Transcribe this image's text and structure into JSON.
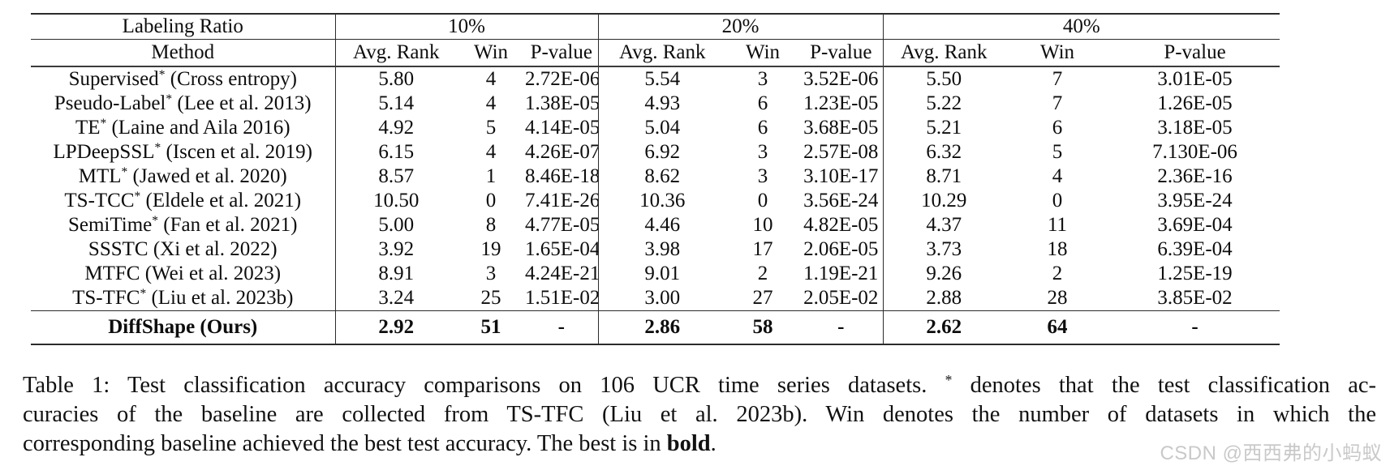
{
  "table": {
    "header": {
      "labeling_ratio_label": "Labeling Ratio",
      "method_label": "Method",
      "ratio_groups": [
        "10%",
        "20%",
        "40%"
      ],
      "subcolumns": [
        "Avg. Rank",
        "Win",
        "P-value"
      ]
    },
    "rows": [
      {
        "name": "Supervised",
        "star": "*",
        "cite": "(Cross entropy)",
        "bold": false,
        "cells": [
          "5.80",
          "4",
          "2.72E-06",
          "5.54",
          "3",
          "3.52E-06",
          "5.50",
          "7",
          "3.01E-05"
        ]
      },
      {
        "name": "Pseudo-Label",
        "star": "*",
        "cite": "(Lee et al. 2013)",
        "bold": false,
        "cells": [
          "5.14",
          "4",
          "1.38E-05",
          "4.93",
          "6",
          "1.23E-05",
          "5.22",
          "7",
          "1.26E-05"
        ]
      },
      {
        "name": "TE",
        "star": "*",
        "cite": "(Laine and Aila 2016)",
        "bold": false,
        "cells": [
          "4.92",
          "5",
          "4.14E-05",
          "5.04",
          "6",
          "3.68E-05",
          "5.21",
          "6",
          "3.18E-05"
        ]
      },
      {
        "name": "LPDeepSSL",
        "star": "*",
        "cite": "(Iscen et al. 2019)",
        "bold": false,
        "cells": [
          "6.15",
          "4",
          "4.26E-07",
          "6.92",
          "3",
          "2.57E-08",
          "6.32",
          "5",
          "7.130E-06"
        ]
      },
      {
        "name": "MTL",
        "star": "*",
        "cite": "(Jawed et al. 2020)",
        "bold": false,
        "cells": [
          "8.57",
          "1",
          "8.46E-18",
          "8.62",
          "3",
          "3.10E-17",
          "8.71",
          "4",
          "2.36E-16"
        ]
      },
      {
        "name": "TS-TCC",
        "star": "*",
        "cite": "(Eldele et al. 2021)",
        "bold": false,
        "cells": [
          "10.50",
          "0",
          "7.41E-26",
          "10.36",
          "0",
          "3.56E-24",
          "10.29",
          "0",
          "3.95E-24"
        ]
      },
      {
        "name": "SemiTime",
        "star": "*",
        "cite": "(Fan et al. 2021)",
        "bold": false,
        "cells": [
          "5.00",
          "8",
          "4.77E-05",
          "4.46",
          "10",
          "4.82E-05",
          "4.37",
          "11",
          "3.69E-04"
        ]
      },
      {
        "name": "SSSTC",
        "star": "",
        "cite": "(Xi et al. 2022)",
        "bold": false,
        "cells": [
          "3.92",
          "19",
          "1.65E-04",
          "3.98",
          "17",
          "2.06E-05",
          "3.73",
          "18",
          "6.39E-04"
        ]
      },
      {
        "name": "MTFC",
        "star": "",
        "cite": "(Wei et al. 2023)",
        "bold": false,
        "cells": [
          "8.91",
          "3",
          "4.24E-21",
          "9.01",
          "2",
          "1.19E-21",
          "9.26",
          "2",
          "1.25E-19"
        ]
      },
      {
        "name": "TS-TFC",
        "star": "*",
        "cite": "(Liu et al. 2023b)",
        "bold": false,
        "cells": [
          "3.24",
          "25",
          "1.51E-02",
          "3.00",
          "27",
          "2.05E-02",
          "2.88",
          "28",
          "3.85E-02"
        ]
      },
      {
        "name": "DiffShape (Ours)",
        "star": "",
        "cite": "",
        "bold": true,
        "cells": [
          "2.92",
          "51",
          "-",
          "2.86",
          "58",
          "-",
          "2.62",
          "64",
          "-"
        ]
      }
    ]
  },
  "caption": {
    "lines": [
      {
        "segments": [
          {
            "text": "Table 1: Test classification accuracy comparisons on 106 UCR time series datasets. ",
            "style": "normal"
          },
          {
            "text": "*",
            "style": "sup"
          },
          {
            "text": " denotes that the test classification ac-",
            "style": "normal"
          }
        ]
      },
      {
        "segments": [
          {
            "text": "curacies of the baseline are collected from TS-TFC (Liu et al. 2023b). Win denotes the number of datasets in which the",
            "style": "normal"
          }
        ]
      },
      {
        "segments": [
          {
            "text": "corresponding baseline achieved the best test accuracy. The best is in ",
            "style": "normal"
          },
          {
            "text": "bold",
            "style": "bold"
          },
          {
            "text": ".",
            "style": "normal"
          }
        ]
      }
    ]
  },
  "watermark": {
    "text": "CSDN @西西弗的小蚂蚁",
    "color": "#c9c9c9"
  },
  "colors": {
    "rule": "#2b2b2b",
    "text": "#0d0d0d",
    "background": "#ffffff"
  }
}
